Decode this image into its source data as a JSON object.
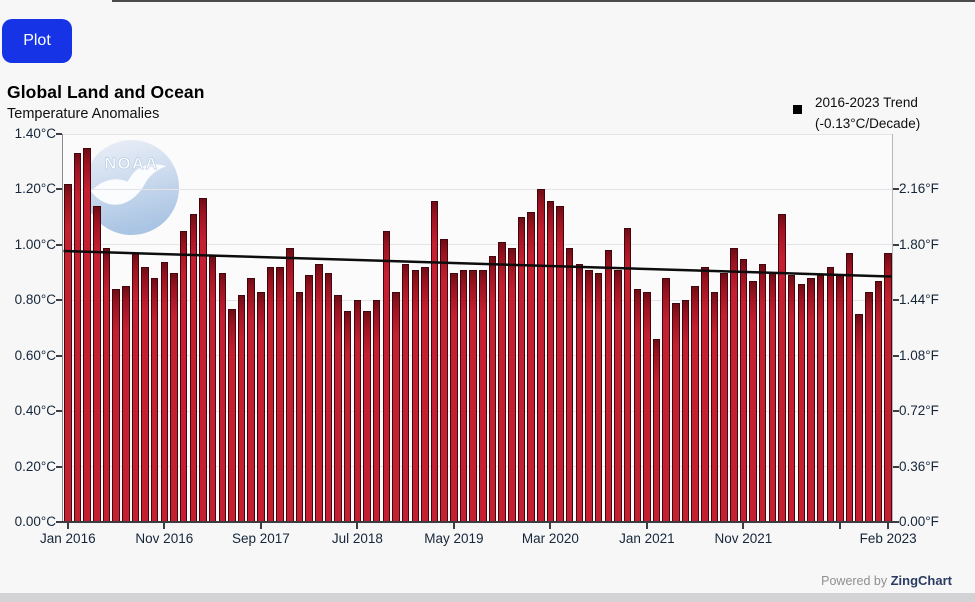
{
  "toolbar": {
    "plot_label": "Plot"
  },
  "header": {
    "title": "Global Land and Ocean",
    "subtitle": "Temperature Anomalies"
  },
  "legend": {
    "marker": "black-square-icon",
    "line1": "2016-2023 Trend",
    "line2": "(-0.13°C/Decade)"
  },
  "watermark": {
    "text": "NOAA"
  },
  "footer": {
    "powered_by": "Powered by ",
    "brand": "ZingChart"
  },
  "colors": {
    "button_blue": "#1634e6",
    "bar_red": "#c42031",
    "bar_edge": "#42060e",
    "trend_black": "#0d0d0d",
    "grid": "#e3e3e8",
    "axis_text": "#152638",
    "page_bg": "#f7f7f8"
  },
  "chart_data": {
    "type": "bar",
    "title": "Global Land and Ocean Temperature Anomalies",
    "legend_position": "top-right",
    "grid": "horizontal-on",
    "x_months": [
      "Jan 2016",
      "Feb 2016",
      "Mar 2016",
      "Apr 2016",
      "May 2016",
      "Jun 2016",
      "Jul 2016",
      "Aug 2016",
      "Sep 2016",
      "Oct 2016",
      "Nov 2016",
      "Dec 2016",
      "Jan 2017",
      "Feb 2017",
      "Mar 2017",
      "Apr 2017",
      "May 2017",
      "Jun 2017",
      "Jul 2017",
      "Aug 2017",
      "Sep 2017",
      "Oct 2017",
      "Nov 2017",
      "Dec 2017",
      "Jan 2018",
      "Feb 2018",
      "Mar 2018",
      "Apr 2018",
      "May 2018",
      "Jun 2018",
      "Jul 2018",
      "Aug 2018",
      "Sep 2018",
      "Oct 2018",
      "Nov 2018",
      "Dec 2018",
      "Jan 2019",
      "Feb 2019",
      "Mar 2019",
      "Apr 2019",
      "May 2019",
      "Jun 2019",
      "Jul 2019",
      "Aug 2019",
      "Sep 2019",
      "Oct 2019",
      "Nov 2019",
      "Dec 2019",
      "Jan 2020",
      "Feb 2020",
      "Mar 2020",
      "Apr 2020",
      "May 2020",
      "Jun 2020",
      "Jul 2020",
      "Aug 2020",
      "Sep 2020",
      "Oct 2020",
      "Nov 2020",
      "Dec 2020",
      "Jan 2021",
      "Feb 2021",
      "Mar 2021",
      "Apr 2021",
      "May 2021",
      "Jun 2021",
      "Jul 2021",
      "Aug 2021",
      "Sep 2021",
      "Oct 2021",
      "Nov 2021",
      "Dec 2021",
      "Jan 2022",
      "Feb 2022",
      "Mar 2022",
      "Apr 2022",
      "May 2022",
      "Jun 2022",
      "Jul 2022",
      "Aug 2022",
      "Sep 2022",
      "Oct 2022",
      "Nov 2022",
      "Dec 2022",
      "Jan 2023",
      "Feb 2023"
    ],
    "series": [
      {
        "name": "Temperature anomaly (°C)",
        "values": [
          1.22,
          1.33,
          1.35,
          1.14,
          0.99,
          0.84,
          0.85,
          0.97,
          0.92,
          0.88,
          0.94,
          0.9,
          1.05,
          1.11,
          1.17,
          0.96,
          0.9,
          0.77,
          0.82,
          0.88,
          0.83,
          0.92,
          0.92,
          0.99,
          0.83,
          0.89,
          0.93,
          0.9,
          0.82,
          0.76,
          0.8,
          0.76,
          0.8,
          1.05,
          0.83,
          0.93,
          0.91,
          0.92,
          1.16,
          1.02,
          0.9,
          0.91,
          0.91,
          0.91,
          0.96,
          1.01,
          0.99,
          1.1,
          1.12,
          1.2,
          1.16,
          1.14,
          0.99,
          0.93,
          0.91,
          0.9,
          0.98,
          0.91,
          1.06,
          0.84,
          0.83,
          0.66,
          0.88,
          0.79,
          0.8,
          0.85,
          0.92,
          0.83,
          0.9,
          0.99,
          0.95,
          0.87,
          0.93,
          0.9,
          1.11,
          0.89,
          0.86,
          0.88,
          0.89,
          0.92,
          0.89,
          0.97,
          0.75,
          0.83,
          0.87,
          0.97
        ]
      }
    ],
    "trend": {
      "label": "2016-2023 Trend (-0.13°C/Decade)",
      "slope_c_per_decade": -0.13,
      "start_value_c": 0.978,
      "end_value_c": 0.886
    },
    "y_left": {
      "unit": "°C",
      "min": 0,
      "max": 1.4,
      "tick_step": 0.2,
      "tick_values": [
        0,
        0.2,
        0.4,
        0.6,
        0.8,
        1.0,
        1.2,
        1.4
      ],
      "tick_labels": [
        "0.00°C",
        "0.20°C",
        "0.40°C",
        "0.60°C",
        "0.80°C",
        "1.00°C",
        "1.20°C",
        "1.40°C"
      ]
    },
    "y_right": {
      "unit": "°F",
      "tick_values_c": [
        0,
        0.2,
        0.4,
        0.6,
        0.8,
        1.0,
        1.2
      ],
      "tick_labels": [
        "0.00°F",
        "0.36°F",
        "0.72°F",
        "1.08°F",
        "1.44°F",
        "1.80°F",
        "2.16°F"
      ]
    },
    "x_axis": {
      "tick_month_indices": [
        0,
        10,
        20,
        30,
        40,
        50,
        60,
        70,
        80,
        85
      ],
      "tick_labels": [
        "Jan 2016",
        "Nov 2016",
        "Sep 2017",
        "Jul 2018",
        "May 2019",
        "Mar 2020",
        "Jan 2021",
        "Nov 2021",
        "",
        "Feb 2023"
      ]
    }
  }
}
